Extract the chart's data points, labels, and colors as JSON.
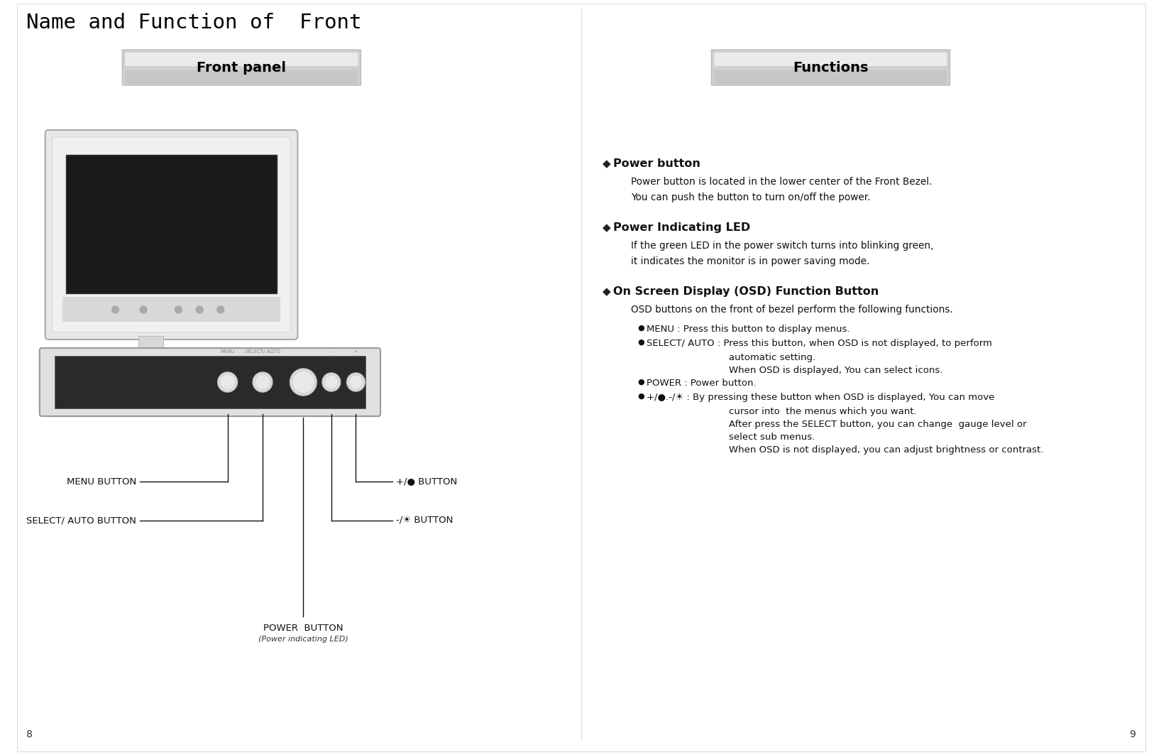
{
  "title": "Name and Function of  Front",
  "left_panel_label": "Front panel",
  "right_panel_label": "Functions",
  "bg_color": "#ffffff",
  "page_left": "8",
  "page_right": "9",
  "labels": {
    "menu_button": "MENU BUTTON",
    "select_auto": "SELECT/ AUTO BUTTON",
    "power_button": "POWER  BUTTON",
    "power_led": "(Power indicating LED)",
    "plus_button": "+/● BUTTON",
    "minus_button": "-/☀ BUTTON"
  },
  "right_content": {
    "section1_title": "Power button",
    "section1_body": [
      "Power button is located in the lower center of the Front Bezel.",
      "You can push the button to turn on/off the power."
    ],
    "section2_title": "Power Indicating LED",
    "section2_body": [
      "If the green LED in the power switch turns into blinking green,",
      "it indicates the monitor is in power saving mode."
    ],
    "section3_title": "On Screen Display (OSD) Function Button",
    "section3_body": "OSD buttons on the front of bezel perform the following functions.",
    "sub_items": [
      {
        "text1": "MENU : Press this button to display menus.",
        "cont": []
      },
      {
        "text1": "SELECT/ AUTO : Press this button, when OSD is not displayed, to perform",
        "cont": [
          "automatic setting.",
          "When OSD is displayed, You can select icons."
        ]
      },
      {
        "text1": "POWER : Power button.",
        "cont": []
      },
      {
        "text1": "+/●.-/☀ : By pressing these button when OSD is displayed, You can move",
        "cont": [
          "cursor into  the menus which you want.",
          "After press the SELECT button, you can change  gauge level or",
          "select sub menus.",
          "When OSD is not displayed, you can adjust brightness or contrast."
        ]
      }
    ]
  }
}
